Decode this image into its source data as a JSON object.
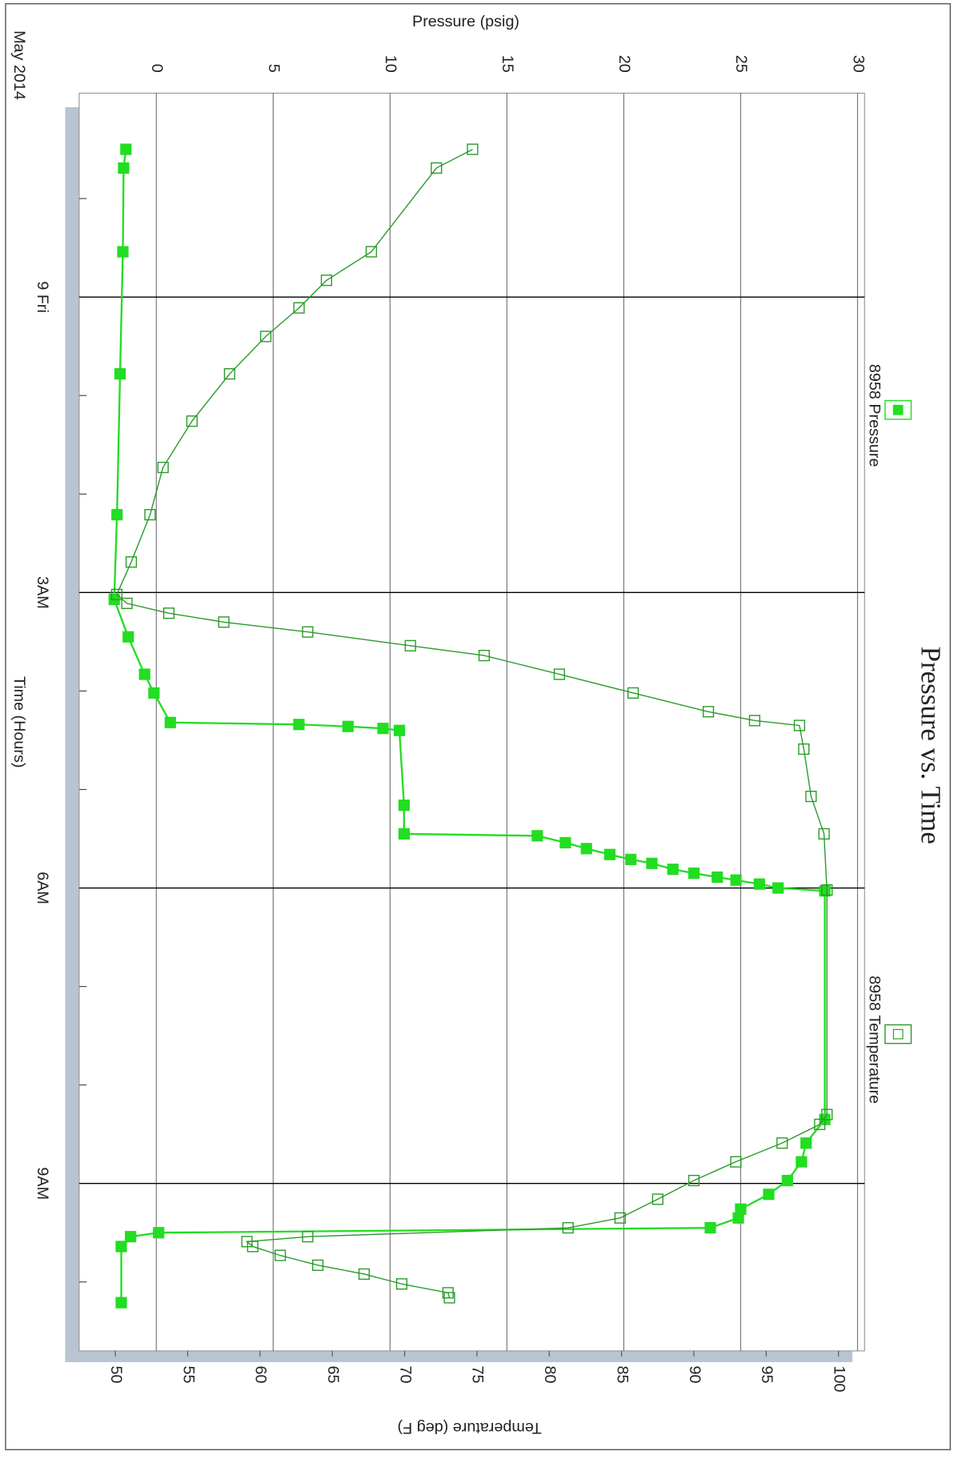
{
  "chart_data": {
    "type": "line",
    "title": "Pressure vs. Time",
    "date_label": "May 2014",
    "x_label": "Time (Hours)",
    "y_label": "Pressure (psig)",
    "y2_label": "Temperature (deg F)",
    "xlim": [
      -2.07,
      10.7
    ],
    "xticks": [
      {
        "value": 0,
        "label": "9 Fri"
      },
      {
        "value": 3,
        "label": "3AM"
      },
      {
        "value": 6,
        "label": "6AM"
      },
      {
        "value": 9,
        "label": "9AM"
      }
    ],
    "xminorticks": [
      -1,
      1,
      2,
      4,
      5,
      7,
      8,
      10
    ],
    "ylim": [
      -3.3,
      30.3
    ],
    "yticks": [
      0,
      5,
      10,
      15,
      20,
      25,
      30
    ],
    "y2lim": [
      47.5,
      101.8
    ],
    "y2ticks": [
      50,
      55,
      60,
      65,
      70,
      75,
      80,
      85,
      90,
      95,
      100
    ],
    "grid": true,
    "legend": "top",
    "series": [
      {
        "name": "8958 Pressure",
        "color": "#22dd22",
        "marker": "filled",
        "x": [
          -1.5,
          -1.31,
          -0.46,
          0.78,
          2.21,
          3.07,
          3.45,
          3.83,
          4.02,
          4.32,
          4.34,
          4.36,
          4.38,
          4.4,
          5.16,
          5.45,
          5.47,
          5.54,
          5.6,
          5.66,
          5.71,
          5.75,
          5.81,
          5.85,
          5.89,
          5.92,
          5.96,
          6.0,
          6.03,
          8.35,
          8.59,
          8.78,
          8.97,
          9.11,
          9.26,
          9.35,
          9.45,
          9.5,
          9.54,
          9.64,
          10.21
        ],
        "values": [
          -1.3,
          -1.4,
          -1.43,
          -1.55,
          -1.68,
          -1.8,
          -1.2,
          -0.5,
          -0.1,
          0.6,
          6.1,
          8.2,
          9.7,
          10.4,
          10.6,
          10.6,
          16.3,
          17.5,
          18.4,
          19.4,
          20.3,
          21.2,
          22.1,
          23.0,
          24.0,
          24.8,
          25.8,
          26.6,
          28.6,
          28.6,
          27.8,
          27.6,
          27.0,
          26.2,
          25.0,
          24.9,
          23.7,
          0.1,
          -1.1,
          -1.5,
          -1.5
        ]
      },
      {
        "name": "8958 Temperature",
        "color": "#2a9a2a",
        "marker": "open",
        "axis": "y2",
        "x": [
          -1.5,
          -1.31,
          -0.46,
          -0.17,
          0.11,
          0.4,
          0.78,
          1.26,
          1.73,
          2.21,
          2.69,
          3.02,
          3.11,
          3.21,
          3.3,
          3.4,
          3.54,
          3.64,
          3.83,
          4.02,
          4.21,
          4.3,
          4.35,
          4.59,
          5.07,
          5.45,
          6.02,
          8.3,
          8.4,
          8.59,
          8.78,
          8.97,
          9.16,
          9.35,
          9.45,
          9.54,
          9.59,
          9.64,
          9.73,
          9.83,
          9.92,
          10.02,
          10.11,
          10.16
        ],
        "values": [
          74.7,
          72.2,
          67.7,
          64.6,
          62.7,
          60.4,
          57.9,
          55.3,
          53.3,
          52.4,
          51.1,
          50.1,
          50.8,
          53.7,
          57.5,
          63.3,
          70.4,
          75.5,
          80.7,
          85.8,
          91.0,
          94.2,
          97.3,
          97.6,
          98.1,
          99.0,
          99.2,
          99.2,
          98.7,
          96.1,
          92.9,
          90.0,
          87.5,
          84.9,
          81.3,
          63.3,
          59.1,
          59.5,
          61.4,
          64.0,
          67.2,
          69.8,
          73.0,
          73.1
        ]
      }
    ]
  }
}
